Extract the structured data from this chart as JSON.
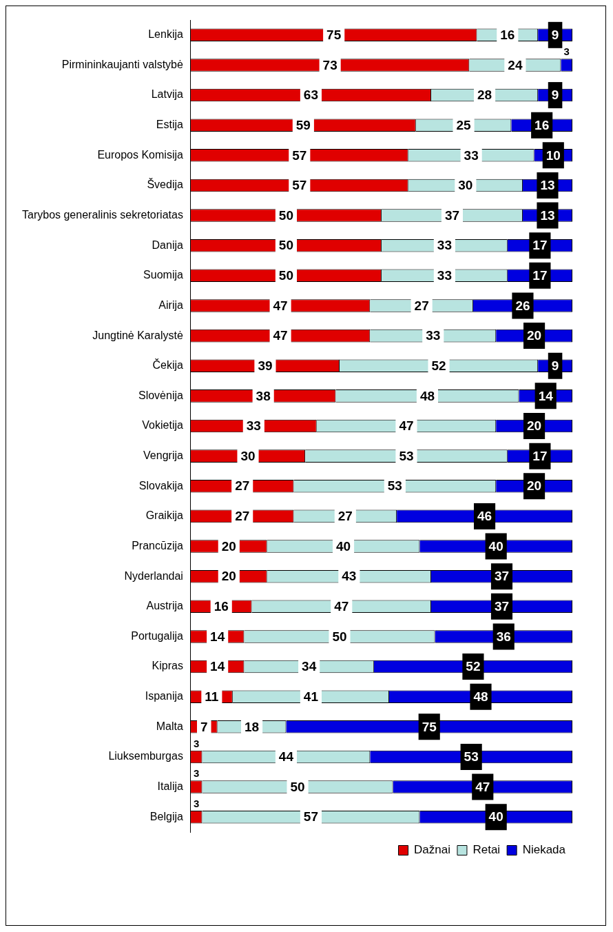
{
  "chart_data": {
    "type": "bar",
    "orientation": "horizontal",
    "stacked": true,
    "data_labels": true,
    "legend": "bottom",
    "grid": false,
    "tick_labels": "y",
    "categories": [
      "Lenkija",
      "Pirmininkaujanti valstybė",
      "Latvija",
      "Estija",
      "Europos Komisija",
      "Švedija",
      "Tarybos generalinis sekretoriatas",
      "Danija",
      "Suomija",
      "Airija",
      "Jungtinė Karalystė",
      "Čekija",
      "Slovėnija",
      "Vokietija",
      "Vengrija",
      "Slovakija",
      "Graikija",
      "Prancūzija",
      "Nyderlandai",
      "Austrija",
      "Portugalija",
      "Kipras",
      "Ispanija",
      "Malta",
      "Liuksemburgas",
      "Italija",
      "Belgija"
    ],
    "series": [
      {
        "name": "Dažnai",
        "color": "#e00000",
        "values": [
          75,
          73,
          63,
          59,
          57,
          57,
          50,
          50,
          50,
          47,
          47,
          39,
          38,
          33,
          30,
          27,
          27,
          20,
          20,
          16,
          14,
          14,
          11,
          7,
          3,
          3,
          3
        ]
      },
      {
        "name": "Retai",
        "color": "#b8e4e0",
        "values": [
          16,
          24,
          28,
          25,
          33,
          30,
          37,
          33,
          33,
          27,
          33,
          52,
          48,
          47,
          53,
          53,
          27,
          40,
          43,
          47,
          50,
          34,
          41,
          18,
          44,
          50,
          57
        ]
      },
      {
        "name": "Niekada",
        "color": "#0000e0",
        "values": [
          9,
          3,
          9,
          16,
          10,
          13,
          13,
          17,
          17,
          26,
          20,
          9,
          14,
          20,
          17,
          20,
          46,
          40,
          37,
          37,
          36,
          52,
          48,
          75,
          53,
          47,
          40
        ]
      }
    ]
  }
}
